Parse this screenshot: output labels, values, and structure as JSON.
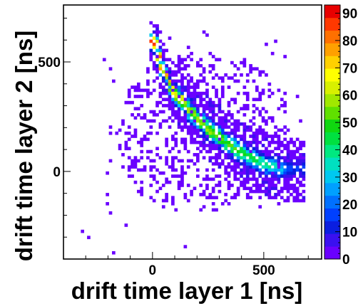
{
  "chart_data": {
    "type": "heatmap",
    "title": "",
    "xlabel": "drift time layer 1 [ns]",
    "ylabel": "drift time layer 2 [ns]",
    "xlim": [
      -400,
      760
    ],
    "ylim": [
      -400,
      760
    ],
    "x_ticks": [
      0,
      500
    ],
    "x_tick_labels": [
      "0",
      "500"
    ],
    "y_ticks": [
      0,
      500
    ],
    "y_tick_labels": [
      "0",
      "500"
    ],
    "z_range": [
      0,
      93
    ],
    "colorbar_ticks": [
      0,
      10,
      20,
      30,
      40,
      50,
      60,
      70,
      80,
      90
    ],
    "colorbar_tick_labels": [
      "0",
      "10",
      "20",
      "30",
      "40",
      "50",
      "60",
      "70",
      "80",
      "90"
    ],
    "colorbar_colors": [
      "#6a00ff",
      "#3a10f0",
      "#0a1ee0",
      "#0040ff",
      "#0070ff",
      "#00a0ff",
      "#00c8f0",
      "#00e0c0",
      "#00e880",
      "#00e040",
      "#10d810",
      "#60e000",
      "#a0e800",
      "#d8f000",
      "#ffff00",
      "#ffd000",
      "#ffa000",
      "#ff7000",
      "#ff3800",
      "#e80000"
    ],
    "bin_width_ns": 14,
    "ridge": {
      "description_points": [
        [
          10,
          600
        ],
        [
          40,
          470
        ],
        [
          100,
          360
        ],
        [
          200,
          240
        ],
        [
          300,
          155
        ],
        [
          400,
          85
        ],
        [
          500,
          35
        ],
        [
          600,
          10
        ]
      ],
      "peak_counts": [
        [
          10,
          85
        ],
        [
          50,
          75
        ],
        [
          150,
          60
        ],
        [
          300,
          55
        ],
        [
          450,
          45
        ],
        [
          560,
          35
        ],
        [
          620,
          15
        ]
      ]
    },
    "grid": false,
    "legend": "none"
  }
}
